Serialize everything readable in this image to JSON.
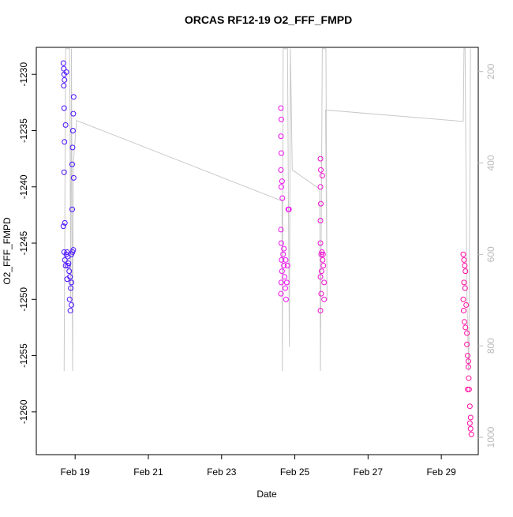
{
  "chart_data": {
    "type": "scatter",
    "title": "ORCAS RF12-19 O2_FFF_FMPD",
    "xlabel": "Date",
    "ylabel": "O2_FFF_FMPD",
    "xlim": [
      17.94,
      30.01
    ],
    "xticks": [
      {
        "value": 19,
        "label": "Feb 19"
      },
      {
        "value": 21,
        "label": "Feb 21"
      },
      {
        "value": 23,
        "label": "Feb 23"
      },
      {
        "value": 25,
        "label": "Feb 25"
      },
      {
        "value": 27,
        "label": "Feb 27"
      },
      {
        "value": 29,
        "label": "Feb 29"
      }
    ],
    "ylim": [
      -1263.8,
      -1227.6
    ],
    "yticks": [
      -1260,
      -1255,
      -1250,
      -1245,
      -1240,
      -1235,
      -1230
    ],
    "y2lim": [
      1038,
      147
    ],
    "y2ticks": [
      200,
      400,
      600,
      800,
      1000
    ],
    "y2color": "#bbbbbb",
    "series": [
      {
        "color": "#4a10ff",
        "x": [
          18.68,
          18.69,
          18.7,
          18.71,
          18.69,
          18.7,
          18.71,
          18.7,
          18.68,
          18.72,
          18.7,
          18.72,
          18.74,
          18.76,
          18.78,
          18.8,
          18.82,
          18.84,
          18.86,
          18.88,
          18.85,
          18.87,
          18.9,
          18.9,
          18.93,
          18.95,
          18.96,
          18.95,
          18.94,
          18.93,
          18.92,
          18.96,
          18.92,
          18.74,
          18.76,
          18.8,
          18.78,
          18.9
        ],
        "values": [
          -1229.0,
          -1229.5,
          -1230.0,
          -1230.5,
          -1231.0,
          -1233.0,
          -1236.0,
          -1238.7,
          -1243.5,
          -1243.2,
          -1245.8,
          -1246.5,
          -1247.0,
          -1246.0,
          -1245.8,
          -1246.2,
          -1246.8,
          -1247.5,
          -1248.0,
          -1249.0,
          -1250.0,
          -1251.0,
          -1250.5,
          -1246.0,
          -1245.8,
          -1245.6,
          -1232.0,
          -1233.5,
          -1235.0,
          -1236.5,
          -1238.0,
          -1239.2,
          -1242.0,
          -1234.5,
          -1229.8,
          -1247.0,
          -1248.2,
          -1248.5
        ]
      },
      {
        "color": "#ee10f0",
        "x": [
          24.62,
          24.63,
          24.62,
          24.63,
          24.62,
          24.63,
          24.62,
          24.63,
          24.64,
          24.65,
          24.63,
          24.62,
          24.66,
          24.68,
          24.7,
          24.72,
          24.74,
          24.76,
          24.7,
          24.75,
          24.8,
          24.82,
          24.84,
          24.78,
          24.65
        ],
        "values": [
          -1233,
          -1234,
          -1235.5,
          -1237,
          -1238.5,
          -1240,
          -1243.8,
          -1245,
          -1246.5,
          -1247.5,
          -1248.5,
          -1249.5,
          -1241,
          -1246,
          -1247,
          -1248,
          -1249,
          -1250,
          -1245.5,
          -1246.5,
          -1247,
          -1242,
          -1242,
          -1248.5,
          -1239.5
        ]
      },
      {
        "color": "#f010d0",
        "x": [
          25.7,
          25.71,
          25.7,
          25.71,
          25.7,
          25.7,
          25.72,
          25.74,
          25.76,
          25.73,
          25.7,
          25.72,
          25.7,
          25.78,
          25.8,
          25.8,
          25.75,
          25.77
        ],
        "values": [
          -1237.5,
          -1238.5,
          -1240,
          -1241.5,
          -1243,
          -1245,
          -1246,
          -1245.8,
          -1246.5,
          -1247.5,
          -1248,
          -1249.5,
          -1251,
          -1247,
          -1248.5,
          -1250,
          -1239,
          -1246
        ]
      },
      {
        "color": "#ff0aa0",
        "x": [
          29.6,
          29.62,
          29.64,
          29.62,
          29.6,
          29.61,
          29.63,
          29.65,
          29.66,
          29.68,
          29.7,
          29.72,
          29.74,
          29.75,
          29.76,
          29.78,
          29.8,
          29.8,
          29.82,
          29.74,
          29.7,
          29.66,
          29.72,
          29.78
        ],
        "values": [
          -1246,
          -1246.5,
          -1247,
          -1248.5,
          -1250,
          -1251,
          -1252,
          -1249,
          -1247.5,
          -1250.5,
          -1253,
          -1255,
          -1256,
          -1257,
          -1258,
          -1259.5,
          -1260.5,
          -1261.5,
          -1262,
          -1255.5,
          -1254,
          -1252.5,
          -1258,
          -1261
        ]
      },
      {
        "type": "line",
        "axis": "y2",
        "color": "#c8c8c8",
        "x": [
          18.7,
          18.72,
          18.74,
          18.8,
          18.85,
          18.88,
          18.9,
          18.93,
          18.95,
          19.04,
          24.65,
          24.66,
          24.68,
          24.8,
          24.85,
          24.88,
          24.93,
          25.68,
          25.7,
          25.75,
          25.85,
          25.88,
          25.84,
          29.6,
          29.62,
          29.65,
          29.7,
          29.75,
          29.8
        ],
        "values": [
          855,
          500,
          150,
          150,
          150,
          700,
          150,
          855,
          400,
          307,
          483,
          855,
          150,
          150,
          802,
          150,
          415,
          457,
          855,
          150,
          150,
          700,
          284,
          309,
          150,
          150,
          700,
          855,
          150
        ]
      }
    ]
  }
}
